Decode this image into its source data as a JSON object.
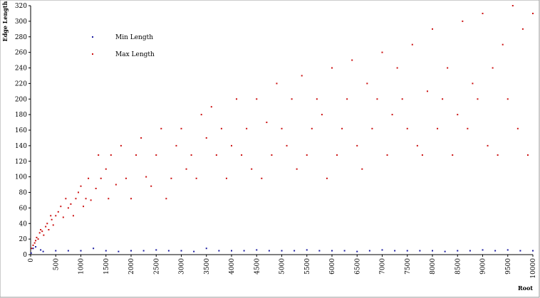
{
  "chart_data": {
    "type": "scatter",
    "x_label": "Root",
    "y_label": "Edge Length",
    "legend": "upper left",
    "grid": false,
    "xlim": [
      0,
      10000
    ],
    "ylim": [
      0,
      320
    ],
    "xticks": [
      0,
      500,
      1000,
      1500,
      2000,
      2500,
      3000,
      3500,
      4000,
      4500,
      5000,
      5500,
      6000,
      6500,
      7000,
      7500,
      8000,
      8500,
      9000,
      9500,
      10000
    ],
    "yticks": [
      0,
      20,
      40,
      60,
      80,
      100,
      120,
      140,
      160,
      180,
      200,
      220,
      240,
      260,
      280,
      300,
      320
    ],
    "series": [
      {
        "name": "Min Length",
        "color": "#1a1aa0",
        "x": [
          10,
          50,
          100,
          200,
          250,
          500,
          750,
          1000,
          1250,
          1500,
          1750,
          2000,
          2250,
          2500,
          2750,
          3000,
          3250,
          3500,
          3750,
          4000,
          4250,
          4500,
          4750,
          5000,
          5250,
          5500,
          5750,
          6000,
          6250,
          6500,
          6750,
          7000,
          7250,
          7500,
          7750,
          8000,
          8250,
          8500,
          8750,
          9000,
          9250,
          9500,
          9750,
          10000
        ],
        "values": [
          2,
          8,
          10,
          6,
          4,
          5,
          5,
          5,
          8,
          5,
          4,
          5,
          5,
          6,
          5,
          5,
          4,
          8,
          5,
          5,
          5,
          6,
          5,
          5,
          5,
          6,
          5,
          5,
          5,
          4,
          5,
          6,
          5,
          5,
          5,
          5,
          4,
          5,
          5,
          6,
          5,
          6,
          5,
          5
        ]
      },
      {
        "name": "Max Length",
        "color": "#cc1111",
        "x": [
          20,
          50,
          80,
          100,
          120,
          150,
          180,
          200,
          230,
          260,
          300,
          330,
          360,
          400,
          420,
          450,
          500,
          550,
          600,
          650,
          700,
          750,
          800,
          850,
          900,
          950,
          1000,
          1050,
          1100,
          1150,
          1200,
          1300,
          1350,
          1400,
          1500,
          1550,
          1600,
          1700,
          1800,
          1900,
          2000,
          2100,
          2200,
          2300,
          2400,
          2500,
          2600,
          2700,
          2800,
          2900,
          3000,
          3100,
          3200,
          3300,
          3400,
          3500,
          3600,
          3700,
          3800,
          3900,
          4000,
          4100,
          4200,
          4300,
          4400,
          4500,
          4600,
          4700,
          4800,
          4900,
          5000,
          5100,
          5200,
          5300,
          5400,
          5500,
          5600,
          5700,
          5800,
          5900,
          6000,
          6100,
          6200,
          6300,
          6400,
          6500,
          6600,
          6700,
          6800,
          6900,
          7000,
          7100,
          7200,
          7300,
          7400,
          7500,
          7600,
          7700,
          7800,
          7900,
          8000,
          8100,
          8200,
          8300,
          8400,
          8500,
          8600,
          8700,
          8800,
          8900,
          9000,
          9100,
          9200,
          9300,
          9400,
          9500,
          9600,
          9700,
          9800,
          9900,
          10000
        ],
        "values": [
          8,
          12,
          15,
          18,
          22,
          20,
          28,
          32,
          30,
          25,
          36,
          40,
          32,
          50,
          45,
          38,
          50,
          55,
          62,
          48,
          72,
          60,
          65,
          50,
          72,
          80,
          88,
          62,
          72,
          98,
          70,
          85,
          128,
          98,
          110,
          72,
          128,
          90,
          140,
          98,
          72,
          128,
          150,
          100,
          88,
          128,
          162,
          72,
          98,
          140,
          162,
          110,
          128,
          98,
          180,
          150,
          190,
          128,
          162,
          98,
          140,
          200,
          128,
          162,
          110,
          200,
          98,
          170,
          128,
          220,
          162,
          140,
          200,
          110,
          230,
          128,
          162,
          200,
          180,
          98,
          240,
          128,
          162,
          200,
          250,
          140,
          110,
          220,
          162,
          200,
          260,
          128,
          180,
          240,
          200,
          162,
          270,
          140,
          128,
          210,
          290,
          162,
          200,
          240,
          128,
          180,
          300,
          162,
          220,
          200,
          310,
          140,
          240,
          128,
          270,
          200,
          320,
          162,
          290,
          128,
          310
        ]
      }
    ]
  }
}
